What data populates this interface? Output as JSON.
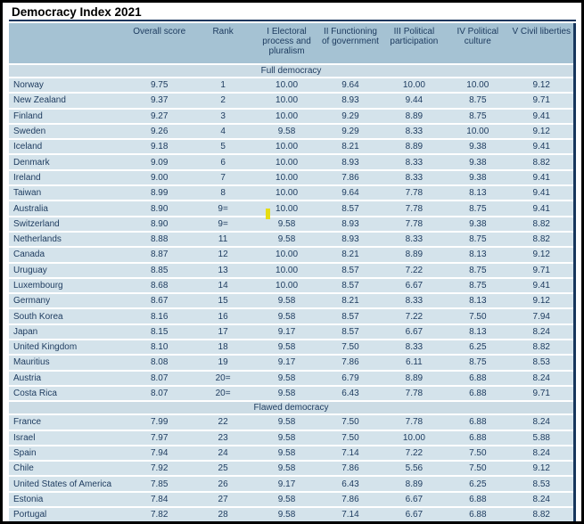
{
  "title": "Democracy Index 2021",
  "columns": [
    "",
    "Overall score",
    "Rank",
    "I Electoral process and pluralism",
    "II Functioning of government",
    "III Political participation",
    "IV Political culture",
    "V Civil liberties"
  ],
  "sections": [
    {
      "label": "Full democracy",
      "rows": [
        {
          "country": "Norway",
          "values": [
            "9.75",
            "1",
            "10.00",
            "9.64",
            "10.00",
            "10.00",
            "9.12"
          ]
        },
        {
          "country": "New Zealand",
          "values": [
            "9.37",
            "2",
            "10.00",
            "8.93",
            "9.44",
            "8.75",
            "9.71"
          ]
        },
        {
          "country": "Finland",
          "values": [
            "9.27",
            "3",
            "10.00",
            "9.29",
            "8.89",
            "8.75",
            "9.41"
          ]
        },
        {
          "country": "Sweden",
          "values": [
            "9.26",
            "4",
            "9.58",
            "9.29",
            "8.33",
            "10.00",
            "9.12"
          ]
        },
        {
          "country": "Iceland",
          "values": [
            "9.18",
            "5",
            "10.00",
            "8.21",
            "8.89",
            "9.38",
            "9.41"
          ]
        },
        {
          "country": "Denmark",
          "values": [
            "9.09",
            "6",
            "10.00",
            "8.93",
            "8.33",
            "9.38",
            "8.82"
          ]
        },
        {
          "country": "Ireland",
          "values": [
            "9.00",
            "7",
            "10.00",
            "7.86",
            "8.33",
            "9.38",
            "9.41"
          ]
        },
        {
          "country": "Taiwan",
          "values": [
            "8.99",
            "8",
            "10.00",
            "9.64",
            "7.78",
            "8.13",
            "9.41"
          ]
        },
        {
          "country": "Australia",
          "values": [
            "8.90",
            "9=",
            "10.00",
            "8.57",
            "7.78",
            "8.75",
            "9.41"
          ]
        },
        {
          "country": "Switzerland",
          "values": [
            "8.90",
            "9=",
            "9.58",
            "8.93",
            "7.78",
            "9.38",
            "8.82"
          ]
        },
        {
          "country": "Netherlands",
          "values": [
            "8.88",
            "11",
            "9.58",
            "8.93",
            "8.33",
            "8.75",
            "8.82"
          ]
        },
        {
          "country": "Canada",
          "values": [
            "8.87",
            "12",
            "10.00",
            "8.21",
            "8.89",
            "8.13",
            "9.12"
          ]
        },
        {
          "country": "Uruguay",
          "values": [
            "8.85",
            "13",
            "10.00",
            "8.57",
            "7.22",
            "8.75",
            "9.71"
          ]
        },
        {
          "country": "Luxembourg",
          "values": [
            "8.68",
            "14",
            "10.00",
            "8.57",
            "6.67",
            "8.75",
            "9.41"
          ]
        },
        {
          "country": "Germany",
          "values": [
            "8.67",
            "15",
            "9.58",
            "8.21",
            "8.33",
            "8.13",
            "9.12"
          ]
        },
        {
          "country": "South Korea",
          "values": [
            "8.16",
            "16",
            "9.58",
            "8.57",
            "7.22",
            "7.50",
            "7.94"
          ]
        },
        {
          "country": "Japan",
          "values": [
            "8.15",
            "17",
            "9.17",
            "8.57",
            "6.67",
            "8.13",
            "8.24"
          ]
        },
        {
          "country": "United Kingdom",
          "values": [
            "8.10",
            "18",
            "9.58",
            "7.50",
            "8.33",
            "6.25",
            "8.82"
          ]
        },
        {
          "country": "Mauritius",
          "values": [
            "8.08",
            "19",
            "9.17",
            "7.86",
            "6.11",
            "8.75",
            "8.53"
          ]
        },
        {
          "country": "Austria",
          "values": [
            "8.07",
            "20=",
            "9.58",
            "6.79",
            "8.89",
            "6.88",
            "8.24"
          ]
        },
        {
          "country": "Costa Rica",
          "values": [
            "8.07",
            "20=",
            "9.58",
            "6.43",
            "7.78",
            "6.88",
            "9.71"
          ]
        }
      ]
    },
    {
      "label": "Flawed democracy",
      "rows": [
        {
          "country": "France",
          "values": [
            "7.99",
            "22",
            "9.58",
            "7.50",
            "7.78",
            "6.88",
            "8.24"
          ]
        },
        {
          "country": "Israel",
          "values": [
            "7.97",
            "23",
            "9.58",
            "7.50",
            "10.00",
            "6.88",
            "5.88"
          ]
        },
        {
          "country": "Spain",
          "values": [
            "7.94",
            "24",
            "9.58",
            "7.14",
            "7.22",
            "7.50",
            "8.24"
          ]
        },
        {
          "country": "Chile",
          "values": [
            "7.92",
            "25",
            "9.58",
            "7.86",
            "5.56",
            "7.50",
            "9.12"
          ]
        },
        {
          "country": "United States of America",
          "values": [
            "7.85",
            "26",
            "9.17",
            "6.43",
            "8.89",
            "6.25",
            "8.53"
          ]
        },
        {
          "country": "Estonia",
          "values": [
            "7.84",
            "27",
            "9.58",
            "7.86",
            "6.67",
            "6.88",
            "8.24"
          ]
        },
        {
          "country": "Portugal",
          "values": [
            "7.82",
            "28",
            "9.58",
            "7.14",
            "6.67",
            "6.88",
            "8.82"
          ]
        }
      ]
    }
  ],
  "colors": {
    "navy": "#17365d",
    "header_bg": "#a5c2d3",
    "band_bg": "#ccdce5",
    "row_bg": "#d4e3eb",
    "text": "#1c3a5e",
    "highlight": "#e6dd14"
  }
}
